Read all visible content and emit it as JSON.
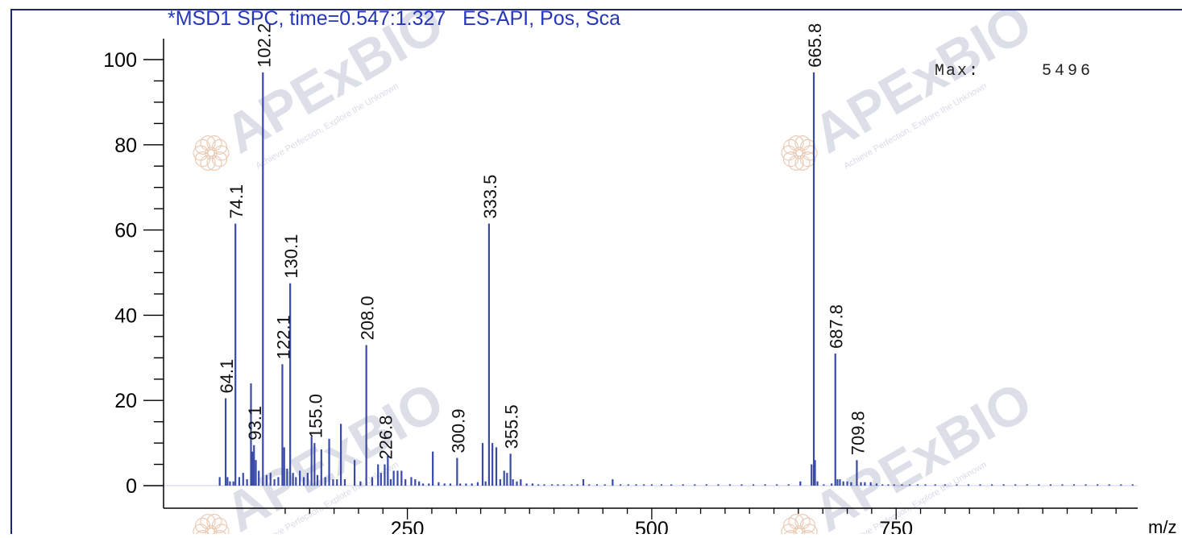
{
  "chart_data": {
    "type": "bar",
    "title": "*MSD1 SPC, time=0.547:1.327   ES-API, Pos, Sca",
    "max_label": "Max:",
    "max_value": "5496",
    "xlabel": "m/z",
    "ylabel": "",
    "xlim": [
      105,
      1000
    ],
    "ylim": [
      0,
      100
    ],
    "x_ticks": [
      250,
      500,
      750
    ],
    "y_ticks": [
      0,
      20,
      40,
      60,
      80,
      100
    ],
    "grid": false,
    "watermark": {
      "name": "APExBIO",
      "tagline": "Achieve Perfection, Explore the Unknown"
    },
    "labeled_peaks": [
      {
        "x": 64.1,
        "y": 20.5,
        "label": "64.1"
      },
      {
        "x": 74.1,
        "y": 61.5,
        "label": "74.1"
      },
      {
        "x": 93.1,
        "y": 9.5,
        "label": "93.1"
      },
      {
        "x": 102.2,
        "y": 97.0,
        "label": "102.2"
      },
      {
        "x": 122.1,
        "y": 28.5,
        "label": "122.1"
      },
      {
        "x": 130.1,
        "y": 47.5,
        "label": "130.1"
      },
      {
        "x": 155.0,
        "y": 10.0,
        "label": "155.0"
      },
      {
        "x": 208.0,
        "y": 33.0,
        "label": "208.0"
      },
      {
        "x": 226.8,
        "y": 5.0,
        "label": "226.8"
      },
      {
        "x": 300.9,
        "y": 6.5,
        "label": "300.9"
      },
      {
        "x": 333.5,
        "y": 61.5,
        "label": "333.5"
      },
      {
        "x": 355.5,
        "y": 7.5,
        "label": "355.5"
      },
      {
        "x": 665.8,
        "y": 97.0,
        "label": "665.8"
      },
      {
        "x": 687.8,
        "y": 31.0,
        "label": "687.8"
      },
      {
        "x": 709.8,
        "y": 6.0,
        "label": "709.8"
      }
    ],
    "minor_peaks": [
      {
        "x": 58.0,
        "y": 2.0
      },
      {
        "x": 66.0,
        "y": 2.0
      },
      {
        "x": 68.5,
        "y": 1.0
      },
      {
        "x": 72.0,
        "y": 1.0
      },
      {
        "x": 78.0,
        "y": 2.0
      },
      {
        "x": 82.0,
        "y": 3.0
      },
      {
        "x": 86.0,
        "y": 1.5
      },
      {
        "x": 90.0,
        "y": 24.0
      },
      {
        "x": 91.5,
        "y": 8.0
      },
      {
        "x": 95.0,
        "y": 6.0
      },
      {
        "x": 98.0,
        "y": 3.5
      },
      {
        "x": 106.0,
        "y": 2.5
      },
      {
        "x": 110.0,
        "y": 3.0
      },
      {
        "x": 114.0,
        "y": 1.5
      },
      {
        "x": 118.0,
        "y": 2.0
      },
      {
        "x": 124.0,
        "y": 9.0
      },
      {
        "x": 127.0,
        "y": 4.0
      },
      {
        "x": 133.0,
        "y": 3.0
      },
      {
        "x": 136.0,
        "y": 2.0
      },
      {
        "x": 140.0,
        "y": 3.5
      },
      {
        "x": 144.0,
        "y": 2.0
      },
      {
        "x": 148.0,
        "y": 3.0
      },
      {
        "x": 152.0,
        "y": 11.5
      },
      {
        "x": 158.0,
        "y": 2.5
      },
      {
        "x": 162.0,
        "y": 8.5
      },
      {
        "x": 166.0,
        "y": 2.0
      },
      {
        "x": 170.0,
        "y": 11.0
      },
      {
        "x": 174.0,
        "y": 1.5
      },
      {
        "x": 178.0,
        "y": 1.5
      },
      {
        "x": 182.0,
        "y": 14.5
      },
      {
        "x": 186.0,
        "y": 1.5
      },
      {
        "x": 196.0,
        "y": 6.0
      },
      {
        "x": 202.0,
        "y": 1.0
      },
      {
        "x": 214.0,
        "y": 2.0
      },
      {
        "x": 220.0,
        "y": 5.0
      },
      {
        "x": 223.0,
        "y": 3.0
      },
      {
        "x": 230.0,
        "y": 7.0
      },
      {
        "x": 233.0,
        "y": 1.5
      },
      {
        "x": 236.0,
        "y": 3.5
      },
      {
        "x": 240.0,
        "y": 3.5
      },
      {
        "x": 244.0,
        "y": 3.5
      },
      {
        "x": 248.0,
        "y": 1.5
      },
      {
        "x": 254.0,
        "y": 2.0
      },
      {
        "x": 258.0,
        "y": 1.5
      },
      {
        "x": 262.0,
        "y": 1.0
      },
      {
        "x": 266.0,
        "y": 0.5
      },
      {
        "x": 272.0,
        "y": 0.5
      },
      {
        "x": 276.0,
        "y": 8.0
      },
      {
        "x": 282.0,
        "y": 0.8
      },
      {
        "x": 288.0,
        "y": 0.5
      },
      {
        "x": 294.0,
        "y": 0.5
      },
      {
        "x": 304.0,
        "y": 0.5
      },
      {
        "x": 310.0,
        "y": 0.5
      },
      {
        "x": 316.0,
        "y": 0.5
      },
      {
        "x": 322.0,
        "y": 0.8
      },
      {
        "x": 327.0,
        "y": 10.0
      },
      {
        "x": 330.0,
        "y": 1.0
      },
      {
        "x": 337.0,
        "y": 10.0
      },
      {
        "x": 341.0,
        "y": 9.0
      },
      {
        "x": 345.0,
        "y": 1.5
      },
      {
        "x": 349.0,
        "y": 3.5
      },
      {
        "x": 352.0,
        "y": 3.0
      },
      {
        "x": 358.0,
        "y": 1.5
      },
      {
        "x": 362.0,
        "y": 1.0
      },
      {
        "x": 366.0,
        "y": 1.5
      },
      {
        "x": 372.0,
        "y": 0.5
      },
      {
        "x": 378.0,
        "y": 0.5
      },
      {
        "x": 384.0,
        "y": 0.3
      },
      {
        "x": 390.0,
        "y": 0.3
      },
      {
        "x": 398.0,
        "y": 0.3
      },
      {
        "x": 404.0,
        "y": 0.3
      },
      {
        "x": 410.0,
        "y": 0.3
      },
      {
        "x": 418.0,
        "y": 0.3
      },
      {
        "x": 424.0,
        "y": 0.3
      },
      {
        "x": 430.0,
        "y": 1.5
      },
      {
        "x": 436.0,
        "y": 0.3
      },
      {
        "x": 444.0,
        "y": 0.3
      },
      {
        "x": 452.0,
        "y": 0.3
      },
      {
        "x": 460.0,
        "y": 1.5
      },
      {
        "x": 468.0,
        "y": 0.3
      },
      {
        "x": 476.0,
        "y": 0.3
      },
      {
        "x": 484.0,
        "y": 0.3
      },
      {
        "x": 492.0,
        "y": 0.3
      },
      {
        "x": 500.0,
        "y": 0.3
      },
      {
        "x": 510.0,
        "y": 0.3
      },
      {
        "x": 520.0,
        "y": 0.3
      },
      {
        "x": 532.0,
        "y": 0.3
      },
      {
        "x": 544.0,
        "y": 0.3
      },
      {
        "x": 556.0,
        "y": 0.3
      },
      {
        "x": 568.0,
        "y": 0.3
      },
      {
        "x": 580.0,
        "y": 0.3
      },
      {
        "x": 592.0,
        "y": 0.3
      },
      {
        "x": 604.0,
        "y": 0.3
      },
      {
        "x": 616.0,
        "y": 0.3
      },
      {
        "x": 628.0,
        "y": 0.3
      },
      {
        "x": 640.0,
        "y": 0.3
      },
      {
        "x": 652.0,
        "y": 1.0
      },
      {
        "x": 663.5,
        "y": 5.0
      },
      {
        "x": 667.0,
        "y": 6.0
      },
      {
        "x": 669.5,
        "y": 1.0
      },
      {
        "x": 676.0,
        "y": 0.3
      },
      {
        "x": 684.0,
        "y": 0.5
      },
      {
        "x": 690.0,
        "y": 1.5
      },
      {
        "x": 692.5,
        "y": 1.5
      },
      {
        "x": 696.0,
        "y": 1.0
      },
      {
        "x": 700.0,
        "y": 1.0
      },
      {
        "x": 704.0,
        "y": 0.8
      },
      {
        "x": 714.0,
        "y": 0.8
      },
      {
        "x": 718.0,
        "y": 0.8
      },
      {
        "x": 724.0,
        "y": 0.8
      },
      {
        "x": 730.0,
        "y": 0.5
      },
      {
        "x": 736.0,
        "y": 0.3
      },
      {
        "x": 742.0,
        "y": 0.3
      },
      {
        "x": 748.0,
        "y": 0.3
      },
      {
        "x": 756.0,
        "y": 0.3
      },
      {
        "x": 764.0,
        "y": 0.3
      },
      {
        "x": 772.0,
        "y": 0.3
      },
      {
        "x": 780.0,
        "y": 0.3
      },
      {
        "x": 790.0,
        "y": 0.3
      },
      {
        "x": 800.0,
        "y": 0.3
      },
      {
        "x": 812.0,
        "y": 0.3
      },
      {
        "x": 824.0,
        "y": 0.3
      },
      {
        "x": 836.0,
        "y": 0.3
      },
      {
        "x": 848.0,
        "y": 0.3
      },
      {
        "x": 860.0,
        "y": 0.3
      },
      {
        "x": 872.0,
        "y": 0.3
      },
      {
        "x": 884.0,
        "y": 0.3
      },
      {
        "x": 896.0,
        "y": 0.3
      },
      {
        "x": 908.0,
        "y": 0.3
      },
      {
        "x": 920.0,
        "y": 0.3
      },
      {
        "x": 932.0,
        "y": 0.3
      },
      {
        "x": 944.0,
        "y": 0.3
      },
      {
        "x": 956.0,
        "y": 0.3
      },
      {
        "x": 968.0,
        "y": 0.3
      },
      {
        "x": 980.0,
        "y": 0.3
      },
      {
        "x": 992.0,
        "y": 0.3
      }
    ],
    "colors": {
      "peak": "#3a4aa8",
      "axis": "#000000",
      "frame": "#1e2a6e",
      "title": "#2536b8",
      "watermark": "#8a93b4",
      "watermark_logo": "#d9a27c"
    }
  }
}
